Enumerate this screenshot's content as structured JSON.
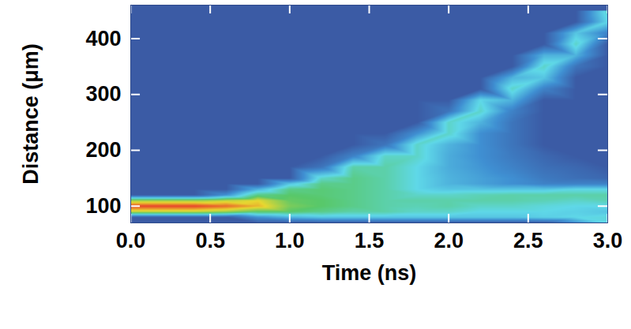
{
  "chart_data": {
    "type": "heatmap",
    "x_label": "Time (ns)",
    "y_label": "Distance (μm)",
    "xlim": [
      0,
      3
    ],
    "ylim": [
      70,
      460
    ],
    "xticks": [
      {
        "value": 0,
        "label": "0.0"
      },
      {
        "value": 0.5,
        "label": "0.5"
      },
      {
        "value": 1,
        "label": "1.0"
      },
      {
        "value": 1.5,
        "label": "1.5"
      },
      {
        "value": 2,
        "label": "2.0"
      },
      {
        "value": 2.5,
        "label": "2.5"
      },
      {
        "value": 3,
        "label": "3.0"
      }
    ],
    "yticks": [
      100,
      200,
      300,
      400
    ],
    "zlim": [
      0,
      1
    ],
    "x": [
      0,
      0.2,
      0.4,
      0.6,
      0.8,
      1,
      1.2,
      1.4,
      1.6,
      1.8,
      2,
      2.2,
      2.4,
      2.6,
      2.8,
      3
    ],
    "y": [
      70,
      80,
      90,
      100,
      110,
      120,
      130,
      140,
      150,
      170,
      190,
      210,
      230,
      250,
      270,
      290,
      310,
      330,
      350,
      370,
      390,
      410,
      430,
      450
    ],
    "values": [
      [
        0,
        0,
        0,
        0,
        0,
        0,
        0,
        0,
        0,
        0,
        0,
        0,
        0,
        0,
        0.2,
        0.4
      ],
      [
        0,
        0,
        0,
        0,
        0.2,
        0.3,
        0.35,
        0.35,
        0.35,
        0.35,
        0.35,
        0.35,
        0.35,
        0.38,
        0.4,
        0.42
      ],
      [
        0.75,
        0.75,
        0.75,
        0.7,
        0.6,
        0.6,
        0.55,
        0.5,
        0.5,
        0.45,
        0.45,
        0.4,
        0.4,
        0.4,
        0.38,
        0.35
      ],
      [
        1,
        1,
        1,
        0.95,
        0.85,
        0.65,
        0.6,
        0.55,
        0.5,
        0.48,
        0.5,
        0.45,
        0.45,
        0.42,
        0.4,
        0.4
      ],
      [
        0.7,
        0.7,
        0.7,
        0.75,
        0.8,
        0.62,
        0.6,
        0.55,
        0.5,
        0.5,
        0.5,
        0.5,
        0.5,
        0.48,
        0.45,
        0.48
      ],
      [
        0,
        0,
        0,
        0.2,
        0.55,
        0.6,
        0.58,
        0.55,
        0.5,
        0.45,
        0.45,
        0.48,
        0.5,
        0.5,
        0.5,
        0.5
      ],
      [
        0,
        0,
        0,
        0,
        0.3,
        0.55,
        0.58,
        0.55,
        0.5,
        0.4,
        0.35,
        0.35,
        0.35,
        0.35,
        0.4,
        0.4
      ],
      [
        0,
        0,
        0,
        0,
        0,
        0.35,
        0.55,
        0.55,
        0.5,
        0.4,
        0.3,
        0.25,
        0.2,
        0.15,
        0.15,
        0.15
      ],
      [
        0,
        0,
        0,
        0,
        0,
        0,
        0.45,
        0.55,
        0.5,
        0.4,
        0.3,
        0.25,
        0.2,
        0.12,
        0.08,
        0.05
      ],
      [
        0,
        0,
        0,
        0,
        0,
        0,
        0.1,
        0.5,
        0.5,
        0.4,
        0.28,
        0.22,
        0.15,
        0.08,
        0.05,
        0
      ],
      [
        0,
        0,
        0,
        0,
        0,
        0,
        0,
        0.15,
        0.45,
        0.45,
        0.28,
        0.2,
        0.12,
        0.05,
        0,
        0
      ],
      [
        0,
        0,
        0,
        0,
        0,
        0,
        0,
        0,
        0.1,
        0.45,
        0.3,
        0.2,
        0.1,
        0,
        0,
        0
      ],
      [
        0,
        0,
        0,
        0,
        0,
        0,
        0,
        0,
        0,
        0.2,
        0.45,
        0.2,
        0.1,
        0,
        0,
        0
      ],
      [
        0,
        0,
        0,
        0,
        0,
        0,
        0,
        0,
        0,
        0,
        0.45,
        0.3,
        0.1,
        0,
        0,
        0
      ],
      [
        0,
        0,
        0,
        0,
        0,
        0,
        0,
        0,
        0,
        0,
        0.1,
        0.45,
        0.15,
        0,
        0,
        0
      ],
      [
        0,
        0,
        0,
        0,
        0,
        0,
        0,
        0,
        0,
        0,
        0,
        0.4,
        0.3,
        0,
        0,
        0
      ],
      [
        0,
        0,
        0,
        0,
        0,
        0,
        0,
        0,
        0,
        0,
        0,
        0,
        0.45,
        0.15,
        0,
        0
      ],
      [
        0,
        0,
        0,
        0,
        0,
        0,
        0,
        0,
        0,
        0,
        0,
        0,
        0.3,
        0.35,
        0,
        0
      ],
      [
        0,
        0,
        0,
        0,
        0,
        0,
        0,
        0,
        0,
        0,
        0,
        0,
        0,
        0.45,
        0.1,
        0
      ],
      [
        0,
        0,
        0,
        0,
        0,
        0,
        0,
        0,
        0,
        0,
        0,
        0,
        0,
        0.3,
        0.3,
        0
      ],
      [
        0,
        0,
        0,
        0,
        0,
        0,
        0,
        0,
        0,
        0,
        0,
        0,
        0,
        0,
        0.45,
        0
      ],
      [
        0,
        0,
        0,
        0,
        0,
        0,
        0,
        0,
        0,
        0,
        0,
        0,
        0,
        0,
        0.35,
        0.15
      ],
      [
        0,
        0,
        0,
        0,
        0,
        0,
        0,
        0,
        0,
        0,
        0,
        0,
        0,
        0,
        0,
        0.4
      ],
      [
        0,
        0,
        0,
        0,
        0,
        0,
        0,
        0,
        0,
        0,
        0,
        0,
        0,
        0,
        0,
        0.45
      ]
    ]
  }
}
